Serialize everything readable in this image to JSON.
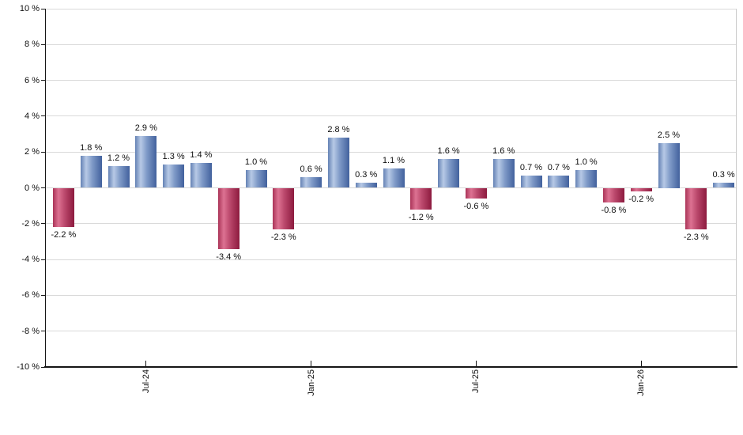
{
  "chart_data": {
    "type": "bar",
    "title": "",
    "unit": "%",
    "ylim": [
      -10,
      10
    ],
    "ytick_step": 2,
    "ytick_labels": [
      "10 %",
      "8 %",
      "6 %",
      "4 %",
      "2 %",
      "0 %",
      "-2 %",
      "-4 %",
      "-6 %",
      "-8 %",
      "-10 %"
    ],
    "xtick_labels": [
      {
        "label": "Jul-24",
        "bar_index": 3
      },
      {
        "label": "Jan-25",
        "bar_index": 9
      },
      {
        "label": "Jul-25",
        "bar_index": 15
      },
      {
        "label": "Jan-26",
        "bar_index": 21
      }
    ],
    "grid": true,
    "legend": "none",
    "bars": [
      {
        "value": -2.2,
        "label": "-2.2 %"
      },
      {
        "value": 1.8,
        "label": "1.8 %"
      },
      {
        "value": 1.2,
        "label": "1.2 %"
      },
      {
        "value": 2.9,
        "label": "2.9 %"
      },
      {
        "value": 1.3,
        "label": "1.3 %"
      },
      {
        "value": 1.4,
        "label": "1.4 %"
      },
      {
        "value": -3.4,
        "label": "-3.4 %"
      },
      {
        "value": 1.0,
        "label": "1.0 %"
      },
      {
        "value": -2.3,
        "label": "-2.3 %"
      },
      {
        "value": 0.6,
        "label": "0.6 %"
      },
      {
        "value": 2.8,
        "label": "2.8 %"
      },
      {
        "value": 0.3,
        "label": "0.3 %"
      },
      {
        "value": 1.1,
        "label": "1.1 %"
      },
      {
        "value": -1.2,
        "label": "-1.2 %"
      },
      {
        "value": 1.6,
        "label": "1.6 %"
      },
      {
        "value": -0.6,
        "label": "-0.6 %"
      },
      {
        "value": 1.6,
        "label": "1.6 %"
      },
      {
        "value": 0.7,
        "label": "0.7 %"
      },
      {
        "value": 0.7,
        "label": "0.7 %"
      },
      {
        "value": 1.0,
        "label": "1.0 %"
      },
      {
        "value": -0.8,
        "label": "-0.8 %"
      },
      {
        "value": -0.2,
        "label": "-0.2 %"
      },
      {
        "value": 2.5,
        "label": "2.5 %"
      },
      {
        "value": -2.3,
        "label": "-2.3 %"
      },
      {
        "value": 0.3,
        "label": "0.3 %"
      }
    ],
    "colors": {
      "positive_edge_left": "#6482b4",
      "positive_highlight": "#b7c9e6",
      "positive_mid": "#7e99c7",
      "positive_edge_right": "#42619d",
      "negative_edge_left": "#aa3458",
      "negative_highlight": "#dd7292",
      "negative_mid": "#bb486c",
      "negative_edge_right": "#8c1a3e",
      "axis": "#151515",
      "gridline": "#d9d9d9",
      "plot_border": "#c9c9c9",
      "label_text": "#101010",
      "background": "#ffffff"
    }
  }
}
